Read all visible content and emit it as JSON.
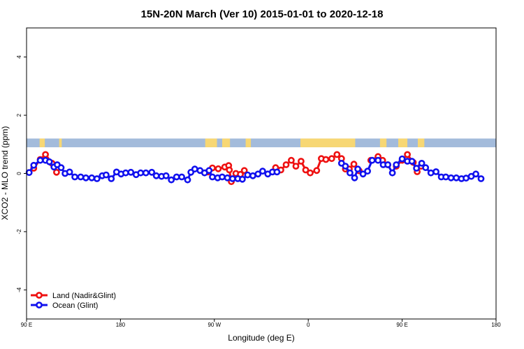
{
  "chart_data": {
    "type": "line",
    "title": "15N-20N March (Ver 10)   2015-01-01 to 2020-12-18",
    "xlabel": "Longitude (deg E)",
    "ylabel": "XCO2 - MLO trend (ppm)",
    "xlim": [
      90,
      450
    ],
    "ylim": [
      -5,
      5
    ],
    "x_ticks": [
      {
        "value": 90,
        "label": "90 E"
      },
      {
        "value": 162,
        "label": "180"
      },
      {
        "value": 234,
        "label": "90 W"
      },
      {
        "value": 306,
        "label": "0"
      },
      {
        "value": 378,
        "label": "90 E"
      },
      {
        "value": 450,
        "label": "180"
      }
    ],
    "y_ticks": [
      {
        "value": -4,
        "label": "-4"
      },
      {
        "value": -2,
        "label": "-2"
      },
      {
        "value": 0,
        "label": "0"
      },
      {
        "value": 2,
        "label": "2"
      },
      {
        "value": 4,
        "label": "4"
      }
    ],
    "land_mask": {
      "y_range": [
        0.9,
        1.2
      ],
      "ocean_color": "#a3bbdb",
      "land_color": "#f7d774",
      "land_x_ranges": [
        [
          100,
          104
        ],
        [
          115,
          117
        ],
        [
          227,
          236
        ],
        [
          240,
          246
        ],
        [
          258,
          262
        ],
        [
          300,
          342
        ],
        [
          361,
          366
        ],
        [
          375,
          382
        ],
        [
          390,
          395
        ]
      ]
    },
    "series": [
      {
        "name": "Land (Nadir&Glint)",
        "color": "#ee1111",
        "segments": [
          [
            [
              95.5,
              0.18
            ],
            [
              100.5,
              0.48
            ],
            [
              104.5,
              0.65
            ],
            [
              109.5,
              0.35
            ],
            [
              113,
              0.04
            ]
          ],
          [
            [
              229,
              0.05
            ],
            [
              232.5,
              0.19
            ],
            [
              237,
              0.16
            ],
            [
              242,
              0.22
            ],
            [
              245,
              0.27
            ],
            [
              245.5,
              0.12
            ],
            [
              247,
              -0.28
            ],
            [
              250.5,
              0.0
            ],
            [
              254,
              -0.03
            ],
            [
              257,
              0.1
            ]
          ],
          [
            [
              281,
              0.2
            ],
            [
              285,
              0.12
            ],
            [
              289,
              0.3
            ],
            [
              293,
              0.45
            ],
            [
              296.5,
              0.25
            ],
            [
              300.5,
              0.42
            ],
            [
              304,
              0.12
            ],
            [
              307.5,
              0.02
            ],
            [
              312.5,
              0.1
            ],
            [
              316,
              0.51
            ],
            [
              319.5,
              0.48
            ],
            [
              324,
              0.51
            ],
            [
              328,
              0.65
            ],
            [
              331.5,
              0.51
            ],
            [
              334.5,
              0.15
            ],
            [
              337.5,
              0.15
            ],
            [
              341,
              0.32
            ],
            [
              345,
              0.09
            ]
          ],
          [
            [
              354,
              0.45
            ],
            [
              359.5,
              0.58
            ],
            [
              363,
              0.45
            ],
            [
              367,
              0.3
            ]
          ],
          [
            [
              373.5,
              0.25
            ],
            [
              378,
              0.45
            ],
            [
              382,
              0.65
            ],
            [
              386.5,
              0.38
            ],
            [
              389.5,
              0.06
            ],
            [
              392.5,
              0.25
            ]
          ]
        ]
      },
      {
        "name": "Ocean (Glint)",
        "color": "#1111ee",
        "segments": [
          [
            [
              92,
              0.03
            ],
            [
              95.5,
              0.28
            ],
            [
              100.5,
              0.45
            ],
            [
              104.5,
              0.45
            ],
            [
              107.5,
              0.4
            ],
            [
              111,
              0.22
            ],
            [
              113.5,
              0.3
            ],
            [
              116.5,
              0.2
            ],
            [
              119.5,
              0.0
            ],
            [
              123,
              0.05
            ],
            [
              127,
              -0.12
            ],
            [
              131.5,
              -0.12
            ],
            [
              135.5,
              -0.15
            ],
            [
              140,
              -0.15
            ],
            [
              144,
              -0.18
            ],
            [
              148,
              -0.08
            ],
            [
              151,
              -0.05
            ],
            [
              155,
              -0.18
            ],
            [
              159,
              0.05
            ],
            [
              162.5,
              -0.02
            ],
            [
              166,
              0.02
            ],
            [
              170,
              0.04
            ],
            [
              174,
              -0.04
            ],
            [
              177.5,
              0.02
            ],
            [
              181.5,
              0.02
            ],
            [
              186,
              0.04
            ],
            [
              189.5,
              -0.08
            ],
            [
              193.5,
              -0.1
            ],
            [
              197,
              -0.08
            ],
            [
              201,
              -0.22
            ],
            [
              205,
              -0.12
            ],
            [
              209,
              -0.12
            ],
            [
              213.5,
              -0.22
            ],
            [
              216,
              0.04
            ],
            [
              219,
              0.15
            ],
            [
              223,
              0.1
            ],
            [
              226.5,
              0.02
            ],
            [
              230,
              0.1
            ],
            [
              232.5,
              -0.12
            ],
            [
              236.5,
              -0.15
            ],
            [
              240,
              -0.12
            ],
            [
              244,
              -0.15
            ],
            [
              248,
              -0.18
            ],
            [
              252,
              -0.18
            ],
            [
              255.5,
              -0.2
            ],
            [
              259.5,
              -0.05
            ],
            [
              263.5,
              -0.08
            ],
            [
              267.5,
              -0.02
            ],
            [
              271,
              0.08
            ],
            [
              275,
              -0.02
            ],
            [
              278.5,
              0.05
            ],
            [
              282,
              0.05
            ]
          ],
          [
            [
              331.5,
              0.35
            ],
            [
              334.5,
              0.25
            ],
            [
              338,
              0.02
            ],
            [
              341.5,
              -0.15
            ],
            [
              344,
              0.15
            ],
            [
              348,
              -0.02
            ],
            [
              351.5,
              0.08
            ],
            [
              355,
              0.45
            ],
            [
              359.5,
              0.45
            ],
            [
              363.5,
              0.3
            ],
            [
              367,
              0.3
            ],
            [
              370.5,
              0.02
            ],
            [
              373.5,
              0.3
            ],
            [
              378,
              0.5
            ],
            [
              382,
              0.42
            ],
            [
              385.5,
              0.42
            ],
            [
              389,
              0.18
            ],
            [
              393,
              0.35
            ],
            [
              396,
              0.2
            ],
            [
              400,
              0.02
            ],
            [
              404,
              0.06
            ],
            [
              408,
              -0.12
            ],
            [
              411.5,
              -0.12
            ],
            [
              415.5,
              -0.15
            ],
            [
              419.5,
              -0.15
            ],
            [
              423.5,
              -0.18
            ],
            [
              427,
              -0.16
            ],
            [
              431,
              -0.1
            ],
            [
              434.5,
              -0.02
            ],
            [
              438.5,
              -0.18
            ]
          ]
        ]
      }
    ],
    "legend": {
      "position": "bottom-left"
    }
  }
}
